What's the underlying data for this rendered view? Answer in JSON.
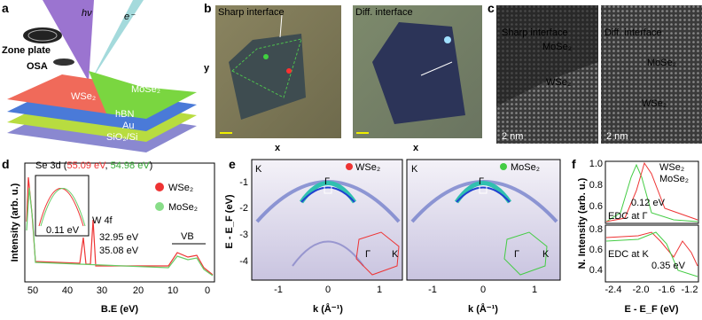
{
  "panels": {
    "a": {
      "label": "a",
      "photon": "hν",
      "electron": "e⁻",
      "zone_plate": "Zone plate",
      "osa": "OSA",
      "layers": [
        "WSe₂",
        "MoSe₂",
        "hBN",
        "Au",
        "SiO₂/Si"
      ]
    },
    "b": {
      "label": "b",
      "left_title": "Sharp interface",
      "right_title": "Diff. interface",
      "y_label": "y",
      "x_label_left": "x",
      "x_label_right": "x"
    },
    "c": {
      "label": "c",
      "left_title": "Sharp interface",
      "left_mo": "MoSe₂",
      "left_w": "WSe₂",
      "right_title": "Diff. interface",
      "right_mo": "MoSe₂",
      "right_w": "WSe₂",
      "scale_left": "2 nm",
      "scale_right": "2 nm"
    },
    "d": {
      "label": "d",
      "title_prefix": "Se 3d (",
      "title_w": "55.09 eV",
      "title_sep": ", ",
      "title_mo": "54.98 eV",
      "title_suffix": ")",
      "legend": [
        "WSe₂",
        "MoSe₂"
      ],
      "w4f": "W 4f",
      "peak1": "32.95 eV",
      "peak2": "35.08 eV",
      "vb": "VB",
      "inset_shift": "0.11 eV",
      "y_label": "Intensity (arb. u.)",
      "x_label": "B.E (eV)",
      "xticks": [
        "50",
        "40",
        "30",
        "20",
        "10",
        "0"
      ]
    },
    "e": {
      "label": "e",
      "left_k": "K",
      "left_name": "WSe₂",
      "left_gamma": "Γ",
      "left_bz_gamma": "Γ",
      "left_bz_k": "K",
      "right_k": "K",
      "right_name": "MoSe₂",
      "right_gamma": "Γ",
      "right_bz_gamma": "Γ",
      "right_bz_k": "K",
      "yticks": [
        "-1",
        "-2",
        "-3",
        "-4"
      ],
      "y_label": "E - E_F (eV)",
      "xticks_left": [
        "-1",
        "0",
        "1"
      ],
      "xticks_right": [
        "-1",
        "0",
        "1"
      ],
      "x_label_left": "k (Å⁻¹)",
      "x_label_right": "k (Å⁻¹)"
    },
    "f": {
      "label": "f",
      "top_yticks": [
        "1.0",
        "0.8",
        "0.6"
      ],
      "bottom_yticks": [
        "0.8",
        "0.6",
        "0.4"
      ],
      "legend": [
        "WSe₂",
        "MoSe₂"
      ],
      "top_shift": "0.12 eV",
      "top_note": "EDC at Γ",
      "bottom_shift": "0.35 eV",
      "bottom_note": "EDC at K",
      "xticks": [
        "-2.4",
        "-2.0",
        "-1.6",
        "-1.2"
      ],
      "y_label": "N. Intensity (arb. u.)",
      "x_label": "E - E_F (eV)"
    }
  }
}
